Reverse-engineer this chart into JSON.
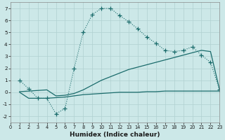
{
  "xlabel": "Humidex (Indice chaleur)",
  "bg_color": "#cce8e8",
  "line_color": "#1a6b6b",
  "grid_color": "#b0d0d0",
  "xlim": [
    0,
    23
  ],
  "ylim": [
    -2.5,
    7.5
  ],
  "xticks": [
    0,
    1,
    2,
    3,
    4,
    5,
    6,
    7,
    8,
    9,
    10,
    11,
    12,
    13,
    14,
    15,
    16,
    17,
    18,
    19,
    20,
    21,
    22,
    23
  ],
  "yticks": [
    -2,
    -1,
    0,
    1,
    2,
    3,
    4,
    5,
    6,
    7
  ],
  "curve1_x": [
    1,
    2,
    3,
    4,
    5,
    6,
    7,
    8,
    9,
    10,
    11,
    12,
    13,
    14,
    15,
    16,
    17,
    18,
    19,
    20,
    21,
    22,
    23
  ],
  "curve1_y": [
    1.0,
    0.3,
    -0.5,
    -0.5,
    -1.8,
    -1.35,
    2.0,
    5.0,
    6.5,
    7.0,
    7.0,
    6.4,
    5.9,
    5.3,
    4.6,
    4.1,
    3.5,
    3.4,
    3.5,
    3.8,
    3.1,
    2.5,
    0.2
  ],
  "curve2_x": [
    1,
    2,
    3,
    4,
    5,
    6,
    7,
    8,
    9,
    10,
    11,
    12,
    13,
    14,
    15,
    16,
    17,
    18,
    19,
    20,
    21,
    22,
    23
  ],
  "curve2_y": [
    0.0,
    -0.5,
    -0.5,
    -0.5,
    -0.45,
    -0.4,
    -0.3,
    -0.2,
    -0.15,
    -0.1,
    -0.05,
    0.0,
    0.0,
    0.0,
    0.05,
    0.05,
    0.1,
    0.1,
    0.1,
    0.1,
    0.1,
    0.1,
    0.1
  ],
  "curve3_x": [
    1,
    2,
    3,
    4,
    5,
    6,
    7,
    8,
    9,
    10,
    11,
    12,
    13,
    14,
    15,
    16,
    17,
    18,
    19,
    20,
    21,
    22,
    23
  ],
  "curve3_y": [
    0.05,
    0.1,
    0.15,
    0.2,
    -0.3,
    -0.25,
    -0.1,
    0.2,
    0.6,
    1.0,
    1.3,
    1.6,
    1.9,
    2.1,
    2.3,
    2.5,
    2.7,
    2.9,
    3.1,
    3.3,
    3.5,
    3.4,
    0.2
  ]
}
